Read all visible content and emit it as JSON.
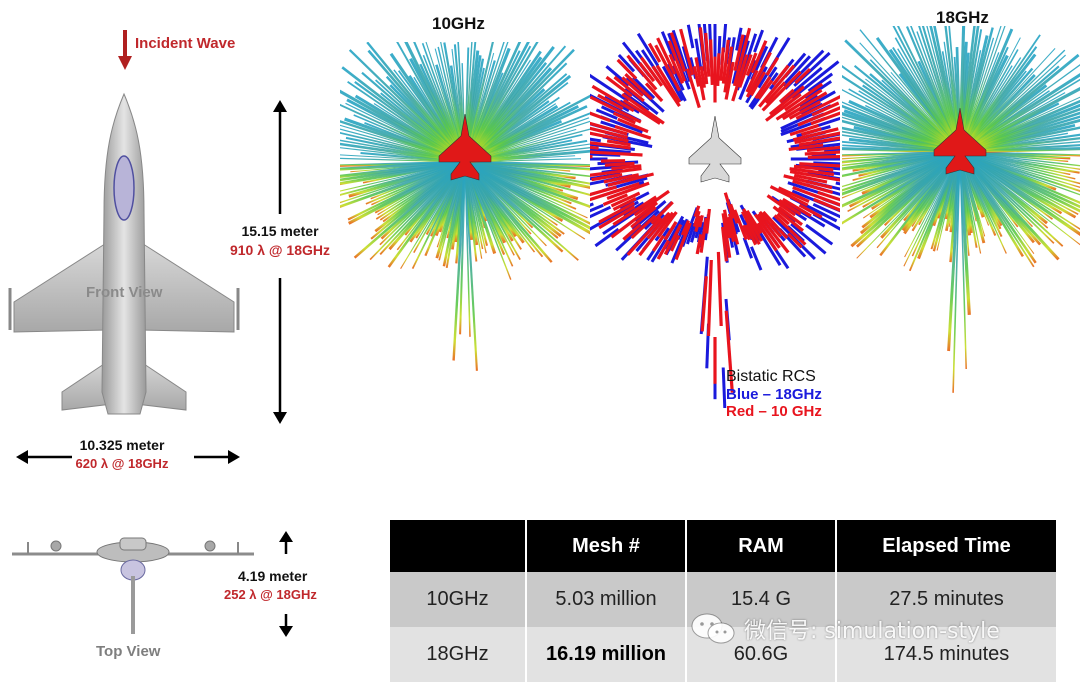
{
  "incident_wave": "Incident Wave",
  "front_view": {
    "label": "Front View"
  },
  "top_view": {
    "label": "Top View"
  },
  "dims": {
    "length_m": "15.15 meter",
    "length_lambda": "910 λ @ 18GHz",
    "width_m": "10.325 meter",
    "width_lambda": "620 λ @ 18GHz",
    "height_m": "4.19 meter",
    "height_lambda": "252 λ @ 18GHz"
  },
  "plots": {
    "left_title": "10GHz",
    "right_title": "18GHz"
  },
  "legend": {
    "title": "Bistatic RCS",
    "blue": "Blue – 18GHz",
    "red": "Red – 10 GHz",
    "blue_color": "#1a1adc",
    "red_color": "#e8141e"
  },
  "table": {
    "headers": [
      "",
      "Mesh #",
      "RAM",
      "Elapsed Time"
    ],
    "rows": [
      [
        "10GHz",
        "5.03 million",
        "15.4 G",
        "27.5 minutes"
      ],
      [
        "18GHz",
        "16.19 million",
        "60.6G",
        "174.5 minutes"
      ]
    ]
  },
  "watermark": "微信号: simulation-style"
}
